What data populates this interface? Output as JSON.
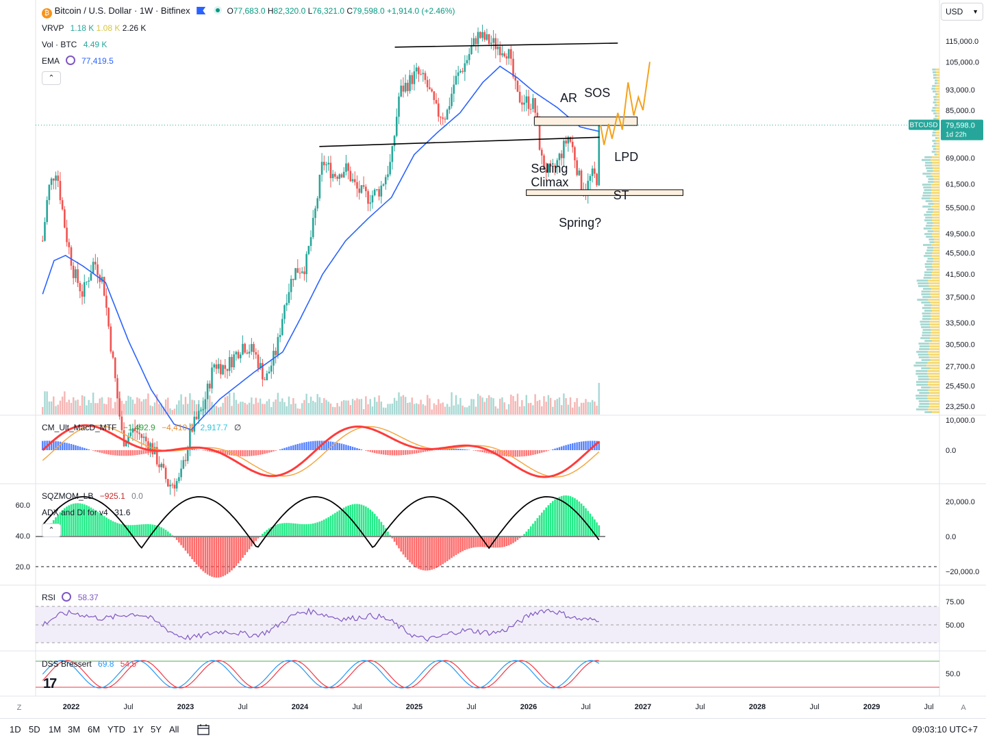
{
  "header": {
    "symbol_title": "Bitcoin / U.S. Dollar · 1W · Bitfinex",
    "ohlc": {
      "open_label": "O",
      "open": "77,683.0",
      "high_label": "H",
      "high": "82,320.0",
      "low_label": "L",
      "low": "76,321.0",
      "close_label": "C",
      "close": "79,598.0",
      "change": "+1,914.0 (+2.46%)"
    },
    "currency": "USD"
  },
  "indicators": {
    "vrvp": {
      "name": "VRVP",
      "v1": "1.18 K",
      "v2": "1.08 K",
      "v3": "2.26 K"
    },
    "volume": {
      "name": "Vol · BTC",
      "value": "4.49 K"
    },
    "ema": {
      "name": "EMA",
      "value": "77,419.5"
    },
    "macd": {
      "name": "CM_Ult_MacD_MTF",
      "v1": "−1,492.9",
      "v2": "−4,410.6",
      "v3": "2,917.7",
      "suffix": "∅"
    },
    "sqz": {
      "name": "SQZMOM_LB",
      "v1": "−925.1",
      "v2": "0.0"
    },
    "adx": {
      "name": "ADX and DI for v4",
      "value": "31.6"
    },
    "rsi": {
      "name": "RSI",
      "value": "58.37"
    },
    "dss": {
      "name": "DSS Bressert",
      "v1": "69.8",
      "v2": "54.5"
    }
  },
  "price_tag": {
    "symbol": "BTCUSD",
    "price": "79,598.0",
    "countdown": "1d 22h"
  },
  "annotations": [
    "AR",
    "SOS",
    "LPD",
    "Selling Climax",
    "ST",
    "Spring?"
  ],
  "colors": {
    "up": "#26a69a",
    "down": "#ef5350",
    "ema": "#2962ff",
    "projection": "#f5a21b",
    "rsi": "#7e57c2",
    "macd_up": "#00e676",
    "macd_down": "#ff3b3b",
    "vp_bar": "#f2d25a"
  },
  "bottom_bar": {
    "ranges": [
      "1D",
      "5D",
      "1M",
      "3M",
      "6M",
      "YTD",
      "1Y",
      "5Y",
      "All"
    ],
    "clock": "09:03:10 UTC+7",
    "scale_left": "Z",
    "scale_right": "A"
  },
  "chart_data": [
    {
      "type": "candlestick",
      "title": "Bitcoin / U.S. Dollar · 1W · Bitfinex",
      "x_ticks": [
        "2022",
        "Jul",
        "2023",
        "Jul",
        "2024",
        "Jul",
        "2025",
        "Jul",
        "2026",
        "Jul",
        "2027",
        "Jul",
        "2028",
        "Jul",
        "2029",
        "Jul"
      ],
      "y_ticks": [
        "115,000.0",
        "105,000.0",
        "93,000.0",
        "85,000.0",
        "69,000.0",
        "61,500.0",
        "55,500.0",
        "49,500.0",
        "45,500.0",
        "41,500.0",
        "37,500.0",
        "33,500.0",
        "30,500.0",
        "27,700.0",
        "25,450.0",
        "23,250.0"
      ],
      "y_scale": "log",
      "price_path": [
        [
          2021.75,
          48000
        ],
        [
          2021.8,
          60000
        ],
        [
          2021.87,
          66000
        ],
        [
          2021.95,
          50000
        ],
        [
          2022.02,
          42000
        ],
        [
          2022.1,
          38000
        ],
        [
          2022.2,
          44000
        ],
        [
          2022.28,
          40000
        ],
        [
          2022.35,
          30000
        ],
        [
          2022.45,
          20000
        ],
        [
          2022.55,
          21000
        ],
        [
          2022.7,
          19500
        ],
        [
          2022.85,
          16500
        ],
        [
          2022.95,
          16800
        ],
        [
          2023.05,
          21000
        ],
        [
          2023.15,
          23000
        ],
        [
          2023.25,
          28000
        ],
        [
          2023.35,
          27500
        ],
        [
          2023.5,
          30500
        ],
        [
          2023.6,
          29500
        ],
        [
          2023.7,
          26000
        ],
        [
          2023.8,
          30000
        ],
        [
          2023.87,
          37000
        ],
        [
          2023.95,
          42000
        ],
        [
          2024.05,
          43000
        ],
        [
          2024.12,
          52000
        ],
        [
          2024.2,
          68000
        ],
        [
          2024.3,
          64000
        ],
        [
          2024.4,
          66000
        ],
        [
          2024.5,
          60000
        ],
        [
          2024.6,
          58000
        ],
        [
          2024.7,
          60000
        ],
        [
          2024.8,
          68000
        ],
        [
          2024.87,
          92000
        ],
        [
          2024.95,
          96000
        ],
        [
          2025.02,
          100000
        ],
        [
          2025.1,
          96000
        ],
        [
          2025.2,
          84000
        ],
        [
          2025.28,
          83000
        ],
        [
          2025.35,
          96000
        ],
        [
          2025.45,
          105000
        ],
        [
          2025.55,
          118000
        ],
        [
          2025.65,
          115000
        ],
        [
          2025.75,
          112000
        ],
        [
          2025.82,
          110000
        ],
        [
          2025.9,
          90000
        ],
        [
          2026.0,
          88000
        ],
        [
          2026.05,
          87000
        ],
        [
          2026.12,
          67000
        ],
        [
          2026.2,
          64000
        ],
        [
          2026.28,
          70000
        ],
        [
          2026.35,
          76000
        ],
        [
          2026.4,
          70000
        ],
        [
          2026.45,
          62000
        ],
        [
          2026.5,
          60000
        ],
        [
          2026.55,
          64000
        ],
        [
          2026.6,
          63000
        ],
        [
          2026.62,
          79598
        ]
      ],
      "ema_path": [
        [
          2021.75,
          38000
        ],
        [
          2021.85,
          44000
        ],
        [
          2021.95,
          45000
        ],
        [
          2022.1,
          43000
        ],
        [
          2022.3,
          40000
        ],
        [
          2022.5,
          31000
        ],
        [
          2022.7,
          25000
        ],
        [
          2022.9,
          21500
        ],
        [
          2023.05,
          21000
        ],
        [
          2023.3,
          24000
        ],
        [
          2023.6,
          27000
        ],
        [
          2023.85,
          29500
        ],
        [
          2024.0,
          34000
        ],
        [
          2024.2,
          41500
        ],
        [
          2024.4,
          48000
        ],
        [
          2024.6,
          53000
        ],
        [
          2024.8,
          58000
        ],
        [
          2025.0,
          70000
        ],
        [
          2025.2,
          77000
        ],
        [
          2025.4,
          84000
        ],
        [
          2025.6,
          96000
        ],
        [
          2025.75,
          103000
        ],
        [
          2025.9,
          98000
        ],
        [
          2026.05,
          92000
        ],
        [
          2026.25,
          86000
        ],
        [
          2026.45,
          79000
        ],
        [
          2026.62,
          77419.5
        ]
      ],
      "projection_path": [
        [
          2026.63,
          79600
        ],
        [
          2026.66,
          73000
        ],
        [
          2026.7,
          80000
        ],
        [
          2026.73,
          75000
        ],
        [
          2026.78,
          84000
        ],
        [
          2026.82,
          78000
        ],
        [
          2026.87,
          96000
        ],
        [
          2026.92,
          83000
        ],
        [
          2026.96,
          90000
        ],
        [
          2027.0,
          85000
        ],
        [
          2027.06,
          105000
        ]
      ],
      "trend_lines": [
        {
          "from": [
            2024.17,
            72500
          ],
          "to": [
            2026.62,
            75500
          ]
        },
        {
          "from": [
            2024.83,
            112000
          ],
          "to": [
            2026.78,
            114000
          ]
        }
      ],
      "zones": [
        {
          "name": "AR/SOS",
          "x": [
            2026.05,
            2026.95
          ],
          "y": [
            79500,
            82500
          ]
        },
        {
          "name": "ST",
          "x": [
            2025.98,
            2027.35
          ],
          "y": [
            58500,
            60000
          ]
        }
      ],
      "last_price": 79598.0
    },
    {
      "type": "line",
      "name": "CM_Ult_MacD_MTF",
      "y_ticks": [
        "10,000.0",
        "0.0"
      ]
    },
    {
      "type": "bar",
      "name": "SQZMOM_LB",
      "y_ticks": [
        "20,000.0",
        "0.0",
        "−20,000.0"
      ],
      "left_ticks": [
        "60.0",
        "40.0",
        "20.0"
      ]
    },
    {
      "type": "line",
      "name": "RSI",
      "y_ticks": [
        "75.00",
        "50.00"
      ],
      "last": 58.37
    },
    {
      "type": "line",
      "name": "DSS Bressert",
      "y_ticks": [
        "50.0"
      ]
    }
  ]
}
